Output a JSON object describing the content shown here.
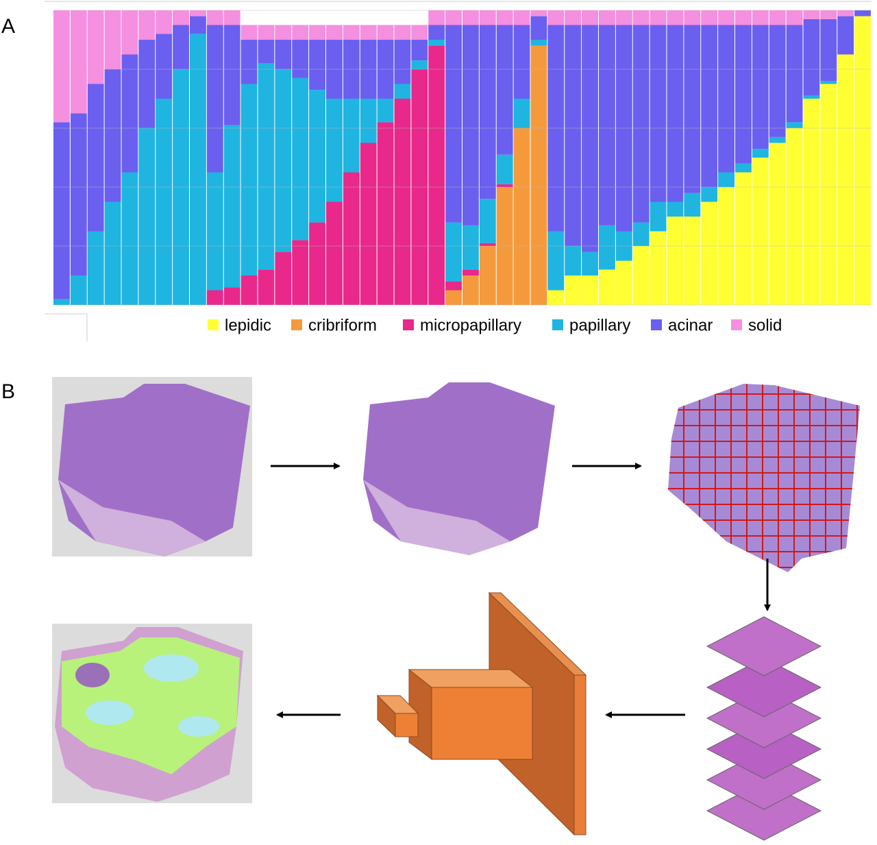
{
  "panel_labels": [
    "A",
    "B"
  ],
  "chart_data": {
    "type": "stacked_bar",
    "ylim": [
      0,
      100
    ],
    "yticks": [
      0,
      20,
      40,
      60,
      80,
      100
    ],
    "grid": true,
    "legend": "bottom",
    "series": [
      {
        "name": "lepidic",
        "color": "#ffff33",
        "values": [
          0,
          0,
          0,
          0,
          0,
          0,
          0,
          0,
          0,
          0,
          0,
          0,
          0,
          0,
          0,
          0,
          0,
          0,
          0,
          0,
          0,
          0,
          0,
          0,
          0,
          0,
          0,
          0,
          0,
          5,
          10,
          10,
          12,
          15,
          20,
          25,
          30,
          30,
          35,
          40,
          45,
          50,
          55,
          60,
          70,
          75,
          85,
          98
        ]
      },
      {
        "name": "cribriform",
        "color": "#f59a3c",
        "values": [
          0,
          0,
          0,
          0,
          0,
          0,
          0,
          0,
          0,
          0,
          0,
          0,
          0,
          0,
          0,
          0,
          0,
          0,
          0,
          0,
          0,
          0,
          0,
          5,
          10,
          20,
          40,
          60,
          88,
          0,
          0,
          0,
          0,
          0,
          0,
          0,
          0,
          0,
          0,
          0,
          0,
          0,
          0,
          0,
          0,
          0,
          0,
          0
        ]
      },
      {
        "name": "micropapillary",
        "color": "#e8288a",
        "values": [
          0,
          0,
          0,
          0,
          0,
          0,
          0,
          0,
          0,
          5,
          6,
          10,
          12,
          18,
          22,
          28,
          35,
          45,
          55,
          62,
          70,
          80,
          88,
          3,
          2,
          1,
          1,
          0,
          0,
          0,
          0,
          0,
          0,
          0,
          0,
          0,
          0,
          0,
          0,
          0,
          0,
          0,
          0,
          0,
          0,
          0,
          0,
          0
        ]
      },
      {
        "name": "papillary",
        "color": "#1fb5e0",
        "values": [
          2,
          10,
          25,
          35,
          45,
          60,
          70,
          80,
          92,
          40,
          55,
          65,
          70,
          62,
          55,
          45,
          35,
          25,
          15,
          8,
          5,
          3,
          2,
          20,
          15,
          15,
          10,
          10,
          2,
          20,
          10,
          8,
          15,
          10,
          8,
          10,
          5,
          8,
          5,
          5,
          3,
          3,
          2,
          2,
          1,
          1,
          0,
          0
        ]
      },
      {
        "name": "acinar",
        "color": "#6b5ff0",
        "values": [
          60,
          55,
          50,
          45,
          40,
          30,
          22,
          15,
          6,
          50,
          34,
          15,
          8,
          10,
          13,
          17,
          20,
          20,
          20,
          20,
          15,
          7,
          5,
          67,
          68,
          59,
          44,
          25,
          8,
          70,
          75,
          77,
          68,
          70,
          67,
          60,
          60,
          57,
          55,
          50,
          47,
          42,
          38,
          33,
          26,
          21,
          13,
          2
        ]
      },
      {
        "name": "solid",
        "color": "#f58fe0",
        "values": [
          38,
          35,
          25,
          20,
          15,
          10,
          8,
          5,
          2,
          5,
          5,
          5,
          5,
          5,
          5,
          5,
          5,
          5,
          5,
          5,
          5,
          5,
          5,
          5,
          5,
          5,
          5,
          5,
          2,
          5,
          5,
          5,
          5,
          5,
          5,
          5,
          5,
          5,
          5,
          5,
          5,
          5,
          5,
          5,
          3,
          3,
          2,
          0
        ]
      }
    ]
  }
}
